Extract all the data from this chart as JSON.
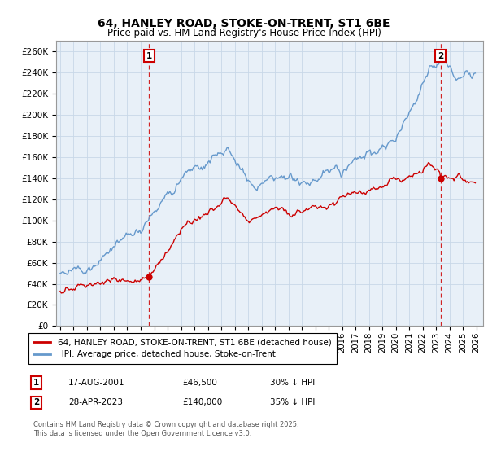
{
  "title": "64, HANLEY ROAD, STOKE-ON-TRENT, ST1 6BE",
  "subtitle": "Price paid vs. HM Land Registry's House Price Index (HPI)",
  "legend_label_red": "64, HANLEY ROAD, STOKE-ON-TRENT, ST1 6BE (detached house)",
  "legend_label_blue": "HPI: Average price, detached house, Stoke-on-Trent",
  "annotation1_date": "17-AUG-2001",
  "annotation1_price": "£46,500",
  "annotation1_hpi": "30% ↓ HPI",
  "annotation2_date": "28-APR-2023",
  "annotation2_price": "£140,000",
  "annotation2_hpi": "35% ↓ HPI",
  "footer": "Contains HM Land Registry data © Crown copyright and database right 2025.\nThis data is licensed under the Open Government Licence v3.0.",
  "color_red": "#cc0000",
  "color_blue": "#6699cc",
  "ylim": [
    0,
    270000
  ],
  "yticks": [
    0,
    20000,
    40000,
    60000,
    80000,
    100000,
    120000,
    140000,
    160000,
    180000,
    200000,
    220000,
    240000,
    260000
  ],
  "ytick_labels": [
    "£0",
    "£20K",
    "£40K",
    "£60K",
    "£80K",
    "£100K",
    "£120K",
    "£140K",
    "£160K",
    "£180K",
    "£200K",
    "£220K",
    "£240K",
    "£260K"
  ],
  "sale1_year": 2001.63,
  "sale1_price": 46500,
  "sale2_year": 2023.33,
  "sale2_price": 140000,
  "background_color": "#ffffff",
  "grid_color": "#c8d8e8",
  "plot_bg": "#e8f0f8"
}
